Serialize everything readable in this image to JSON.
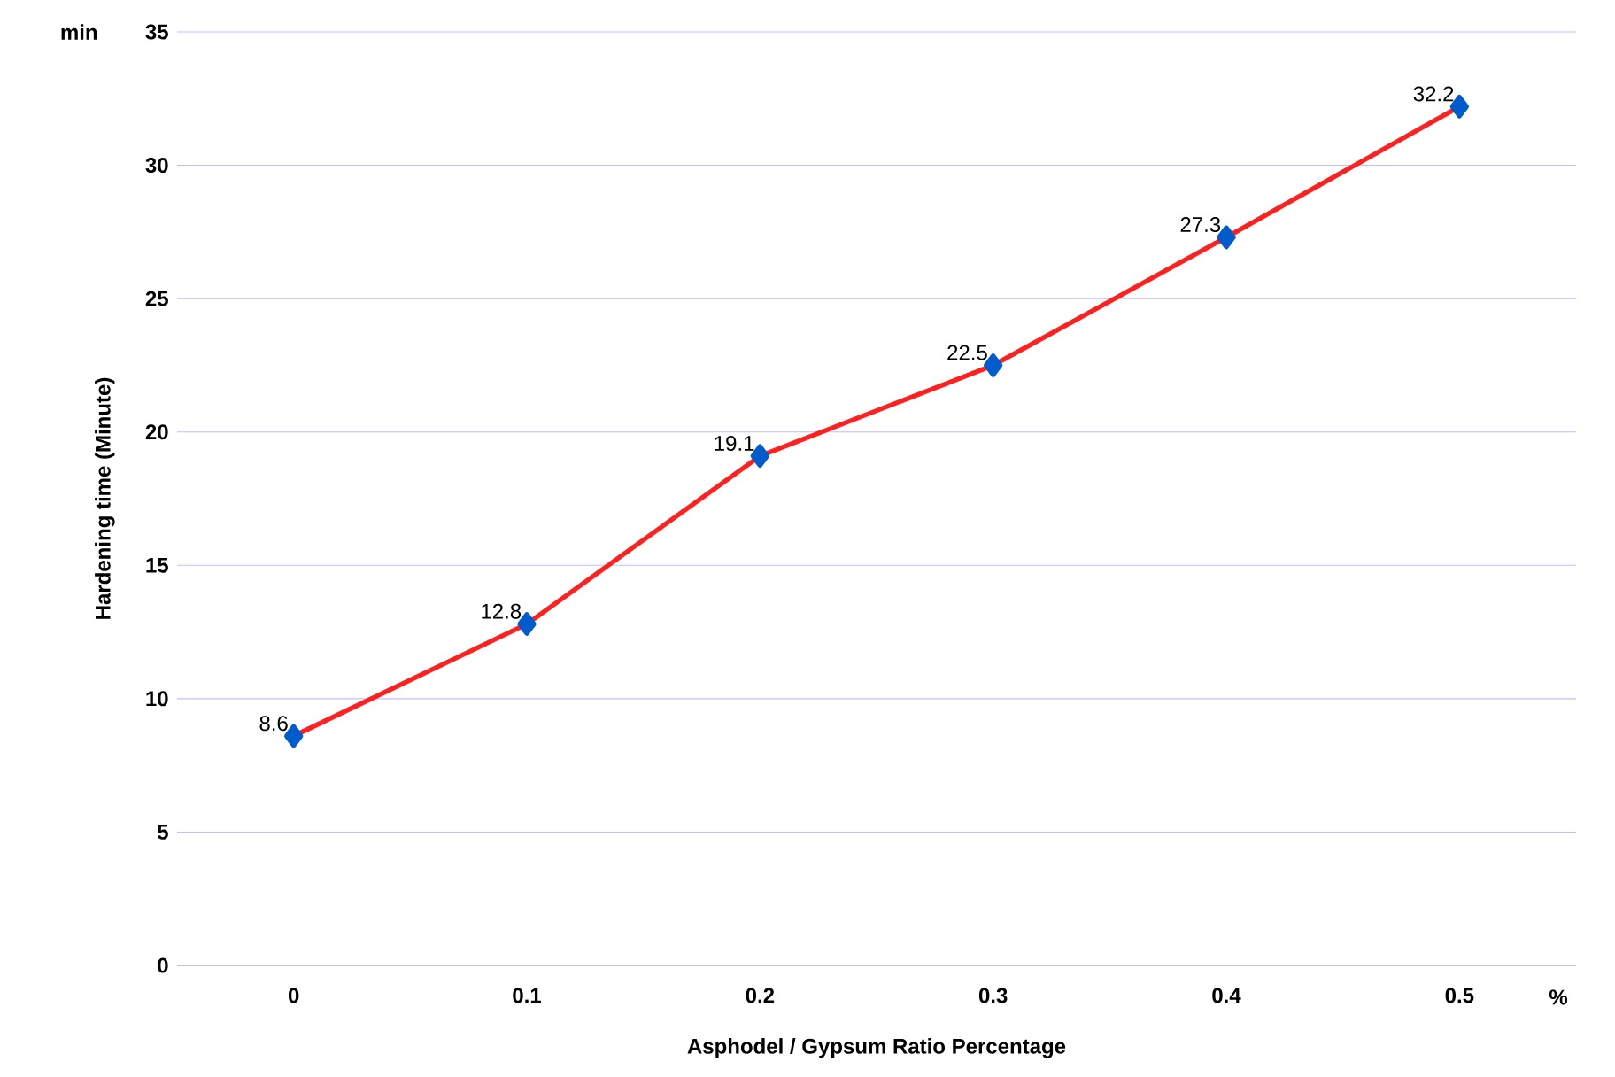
{
  "chart_data": {
    "type": "line",
    "xlabel": "Asphodel / Gypsum Ratio Percentage",
    "ylabel": "Hardening time (Minute)",
    "categories": [
      "0",
      "0.1",
      "0.2",
      "0.3",
      "0.4",
      "0.5"
    ],
    "series": [
      {
        "color": "#ff2020",
        "values": [
          8.6,
          12.8,
          19.1,
          22.5,
          27.3,
          32.2
        ]
      }
    ],
    "ylim": [
      0,
      35
    ],
    "yticks": [
      0,
      5,
      10,
      15,
      20,
      25,
      30,
      35
    ],
    "grid": "y",
    "marker": "diamond",
    "line_style": "solid",
    "data_labels": true,
    "annotations": [
      "min",
      "%"
    ]
  }
}
